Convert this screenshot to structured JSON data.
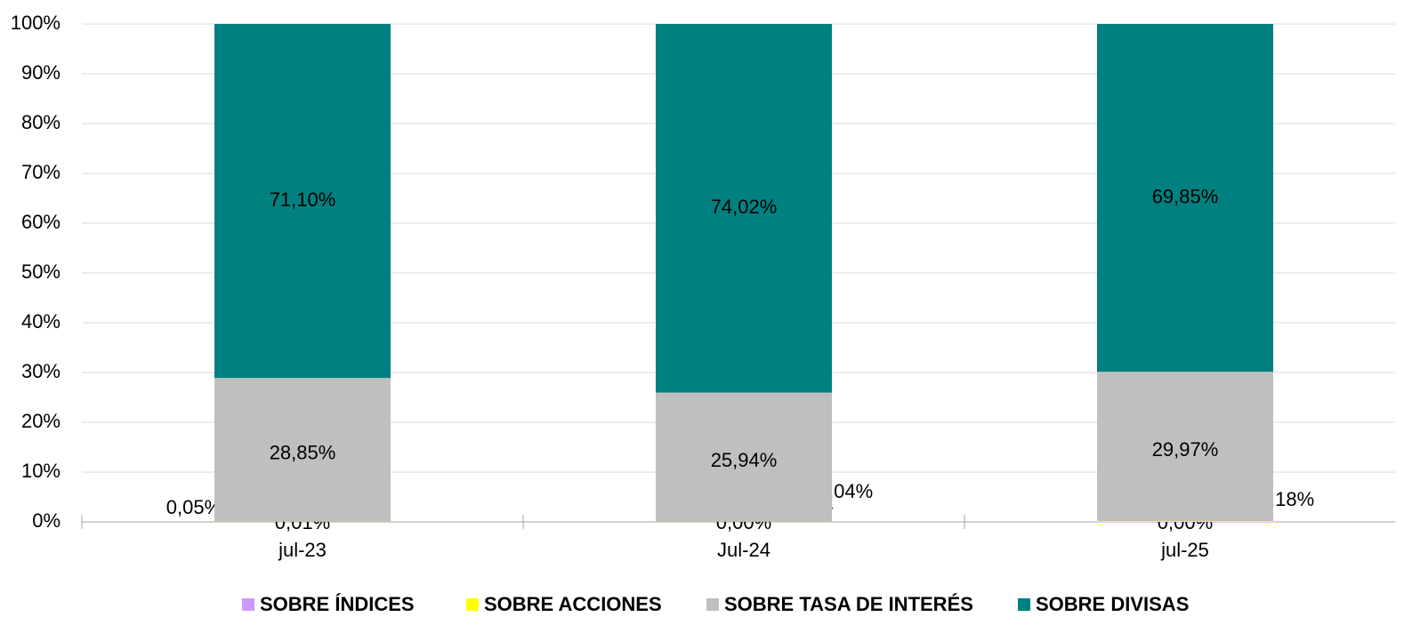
{
  "chart_data": {
    "type": "stacked_bar",
    "categories": [
      "jul-23",
      "Jul-24",
      "jul-25"
    ],
    "series": [
      {
        "name": "SOBRE  ÍNDICES",
        "color": "#cc99ff",
        "values": [
          0.01,
          0,
          0
        ],
        "value_labels": [
          "0,01%",
          "0,00%",
          "0,00%"
        ]
      },
      {
        "name": "SOBRE ACCIONES",
        "color": "#ffff00",
        "values": [
          0.05,
          0.04,
          0.18
        ],
        "value_labels": [
          "0,05%",
          "0,04%",
          "0,18%"
        ]
      },
      {
        "name": "SOBRE TASA DE INTERÉS",
        "color": "#bfbfbf",
        "values": [
          28.85,
          25.94,
          29.97
        ],
        "value_labels": [
          "28,85%",
          "25,94%",
          "29,97%"
        ]
      },
      {
        "name": "SOBRE  DIVISAS",
        "color": "#008080",
        "values": [
          71.1,
          74.02,
          69.85
        ],
        "value_labels": [
          "71,10%",
          "74,02%",
          "69,85%"
        ]
      }
    ],
    "ylim": [
      0,
      100
    ],
    "yticks": [
      {
        "value": 0,
        "label": "0%"
      },
      {
        "value": 10,
        "label": "10%"
      },
      {
        "value": 20,
        "label": "20%"
      },
      {
        "value": 30,
        "label": "30%"
      },
      {
        "value": 40,
        "label": "40%"
      },
      {
        "value": 50,
        "label": "50%"
      },
      {
        "value": 60,
        "label": "60%"
      },
      {
        "value": 70,
        "label": "70%"
      },
      {
        "value": 80,
        "label": "80%"
      },
      {
        "value": 90,
        "label": "90%"
      },
      {
        "value": 100,
        "label": "100%"
      }
    ],
    "grid": true
  }
}
